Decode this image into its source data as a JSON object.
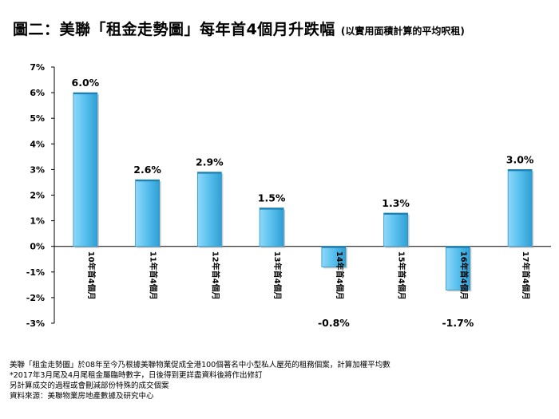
{
  "title": "圖二：美聯「租金走勢圖」每年首4個月升跌幅",
  "subtitle": "(以實用面積計算的平均呎租)",
  "chart_data": {
    "type": "bar",
    "categories": [
      "10年首4個月",
      "11年首4個月",
      "12年首4個月",
      "13年首4個月",
      "14年首4個月",
      "15年首4個月",
      "16年首4個月",
      "17年首4個月"
    ],
    "values": [
      6.0,
      2.6,
      2.9,
      1.5,
      -0.8,
      1.3,
      -1.7,
      3.0
    ],
    "data_labels": [
      "6.0%",
      "2.6%",
      "2.9%",
      "1.5%",
      "-0.8%",
      "1.3%",
      "-1.7%",
      "3.0%"
    ],
    "ylim": [
      -3,
      7
    ],
    "yticks": [
      7,
      6,
      5,
      4,
      3,
      2,
      1,
      0,
      -1,
      -2,
      -3
    ],
    "ytick_labels": [
      "7%",
      "6%",
      "5%",
      "4%",
      "3%",
      "2%",
      "1%",
      "0%",
      "-1%",
      "-2%",
      "-3%"
    ],
    "bar_color": "#5bc2ef",
    "grid": false,
    "legend": "none"
  },
  "notes": [
    "美聯「租金走勢圖」於08年至今乃根據美聯物業促成全港100個著名中小型私人屋苑的租務個案，計算加權平均數",
    "*2017年3月尾及4月尾租金屬臨時數字，日後得到更詳盡資料後將作出修訂",
    "另計算成交的過程或會刪減部份特殊的成交個案",
    "資料來源：美聯物業房地產數據及研究中心"
  ]
}
